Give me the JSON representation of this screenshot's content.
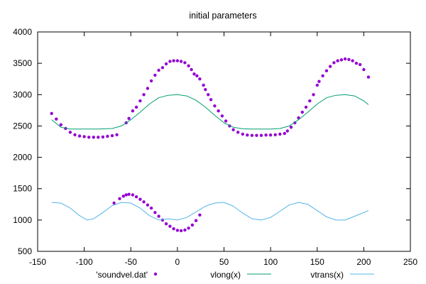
{
  "chart_data": {
    "type": "scatter",
    "title": "initial parameters",
    "xlim": [
      -150,
      250
    ],
    "ylim": [
      500,
      4000
    ],
    "xticks": [
      "-150",
      "-100",
      "-50",
      "0",
      "50",
      "100",
      "150",
      "200",
      "250"
    ],
    "yticks": [
      "500",
      "1000",
      "1500",
      "2000",
      "2500",
      "3000",
      "3500",
      "4000"
    ],
    "grid": false,
    "legend_position": "bottom",
    "series": [
      {
        "name": "'soundvel.dat'",
        "kind": "points",
        "color": "#9400d3",
        "points": [
          [
            -135,
            2700
          ],
          [
            -130,
            2610
          ],
          [
            -125,
            2520
          ],
          [
            -120,
            2460
          ],
          [
            -115,
            2400
          ],
          [
            -110,
            2360
          ],
          [
            -105,
            2340
          ],
          [
            -100,
            2330
          ],
          [
            -95,
            2320
          ],
          [
            -90,
            2320
          ],
          [
            -85,
            2320
          ],
          [
            -80,
            2325
          ],
          [
            -75,
            2335
          ],
          [
            -70,
            2345
          ],
          [
            -65,
            2360
          ],
          [
            -55,
            2550
          ],
          [
            -52,
            2620
          ],
          [
            -48,
            2740
          ],
          [
            -44,
            2800
          ],
          [
            -40,
            2900
          ],
          [
            -36,
            3000
          ],
          [
            -32,
            3100
          ],
          [
            -28,
            3220
          ],
          [
            -24,
            3310
          ],
          [
            -20,
            3390
          ],
          [
            -16,
            3430
          ],
          [
            -12,
            3490
          ],
          [
            -8,
            3530
          ],
          [
            -4,
            3540
          ],
          [
            0,
            3540
          ],
          [
            4,
            3530
          ],
          [
            8,
            3510
          ],
          [
            12,
            3460
          ],
          [
            15,
            3400
          ],
          [
            18,
            3330
          ],
          [
            21,
            3300
          ],
          [
            24,
            3250
          ],
          [
            28,
            3150
          ],
          [
            30,
            3080
          ],
          [
            33,
            3000
          ],
          [
            36,
            2920
          ],
          [
            40,
            2820
          ],
          [
            44,
            2740
          ],
          [
            48,
            2660
          ],
          [
            52,
            2580
          ],
          [
            56,
            2500
          ],
          [
            60,
            2440
          ],
          [
            65,
            2400
          ],
          [
            70,
            2370
          ],
          [
            75,
            2355
          ],
          [
            80,
            2350
          ],
          [
            85,
            2350
          ],
          [
            90,
            2350
          ],
          [
            95,
            2355
          ],
          [
            100,
            2355
          ],
          [
            105,
            2360
          ],
          [
            110,
            2370
          ],
          [
            115,
            2380
          ],
          [
            118,
            2420
          ],
          [
            122,
            2480
          ],
          [
            126,
            2550
          ],
          [
            130,
            2630
          ],
          [
            134,
            2720
          ],
          [
            138,
            2800
          ],
          [
            142,
            2900
          ],
          [
            146,
            3000
          ],
          [
            150,
            3150
          ],
          [
            152,
            3210
          ],
          [
            156,
            3300
          ],
          [
            160,
            3380
          ],
          [
            164,
            3450
          ],
          [
            168,
            3510
          ],
          [
            172,
            3540
          ],
          [
            176,
            3555
          ],
          [
            180,
            3570
          ],
          [
            184,
            3560
          ],
          [
            188,
            3540
          ],
          [
            192,
            3500
          ],
          [
            196,
            3480
          ],
          [
            200,
            3400
          ],
          [
            205,
            3280
          ],
          [
            -68,
            1270
          ],
          [
            -62,
            1340
          ],
          [
            -58,
            1380
          ],
          [
            -55,
            1400
          ],
          [
            -52,
            1410
          ],
          [
            -48,
            1400
          ],
          [
            -44,
            1370
          ],
          [
            -40,
            1330
          ],
          [
            -36,
            1290
          ],
          [
            -32,
            1240
          ],
          [
            -28,
            1190
          ],
          [
            -24,
            1120
          ],
          [
            -20,
            1060
          ],
          [
            -16,
            1000
          ],
          [
            -12,
            940
          ],
          [
            -8,
            900
          ],
          [
            -4,
            860
          ],
          [
            0,
            835
          ],
          [
            4,
            830
          ],
          [
            8,
            840
          ],
          [
            12,
            870
          ],
          [
            16,
            920
          ],
          [
            20,
            990
          ],
          [
            24,
            1080
          ]
        ]
      },
      {
        "name": "vlong(x)",
        "kind": "line",
        "color": "#009e73",
        "points": [
          [
            -135,
            2600
          ],
          [
            -125,
            2480
          ],
          [
            -115,
            2450
          ],
          [
            -100,
            2450
          ],
          [
            -85,
            2450
          ],
          [
            -70,
            2460
          ],
          [
            -60,
            2500
          ],
          [
            -50,
            2600
          ],
          [
            -40,
            2720
          ],
          [
            -30,
            2850
          ],
          [
            -20,
            2950
          ],
          [
            -10,
            2990
          ],
          [
            0,
            3000
          ],
          [
            10,
            2980
          ],
          [
            20,
            2910
          ],
          [
            30,
            2800
          ],
          [
            40,
            2670
          ],
          [
            50,
            2550
          ],
          [
            60,
            2480
          ],
          [
            70,
            2455
          ],
          [
            80,
            2450
          ],
          [
            90,
            2450
          ],
          [
            100,
            2450
          ],
          [
            110,
            2460
          ],
          [
            120,
            2500
          ],
          [
            130,
            2600
          ],
          [
            140,
            2720
          ],
          [
            150,
            2850
          ],
          [
            160,
            2950
          ],
          [
            170,
            2990
          ],
          [
            180,
            3000
          ],
          [
            190,
            2980
          ],
          [
            200,
            2900
          ],
          [
            205,
            2840
          ]
        ]
      },
      {
        "name": "vtrans(x)",
        "kind": "line",
        "color": "#56b4e9",
        "points": [
          [
            -135,
            1280
          ],
          [
            -125,
            1270
          ],
          [
            -115,
            1190
          ],
          [
            -105,
            1070
          ],
          [
            -97,
            1000
          ],
          [
            -90,
            1020
          ],
          [
            -80,
            1120
          ],
          [
            -70,
            1230
          ],
          [
            -60,
            1280
          ],
          [
            -50,
            1270
          ],
          [
            -40,
            1190
          ],
          [
            -30,
            1070
          ],
          [
            -20,
            1000
          ],
          [
            -10,
            1020
          ],
          [
            0,
            1000
          ],
          [
            10,
            1040
          ],
          [
            20,
            1130
          ],
          [
            30,
            1220
          ],
          [
            40,
            1270
          ],
          [
            50,
            1280
          ],
          [
            60,
            1220
          ],
          [
            70,
            1110
          ],
          [
            80,
            1020
          ],
          [
            90,
            1000
          ],
          [
            100,
            1040
          ],
          [
            110,
            1140
          ],
          [
            120,
            1240
          ],
          [
            130,
            1280
          ],
          [
            140,
            1250
          ],
          [
            150,
            1150
          ],
          [
            160,
            1050
          ],
          [
            170,
            1000
          ],
          [
            180,
            1000
          ],
          [
            190,
            1060
          ],
          [
            200,
            1120
          ],
          [
            205,
            1150
          ]
        ]
      }
    ]
  }
}
